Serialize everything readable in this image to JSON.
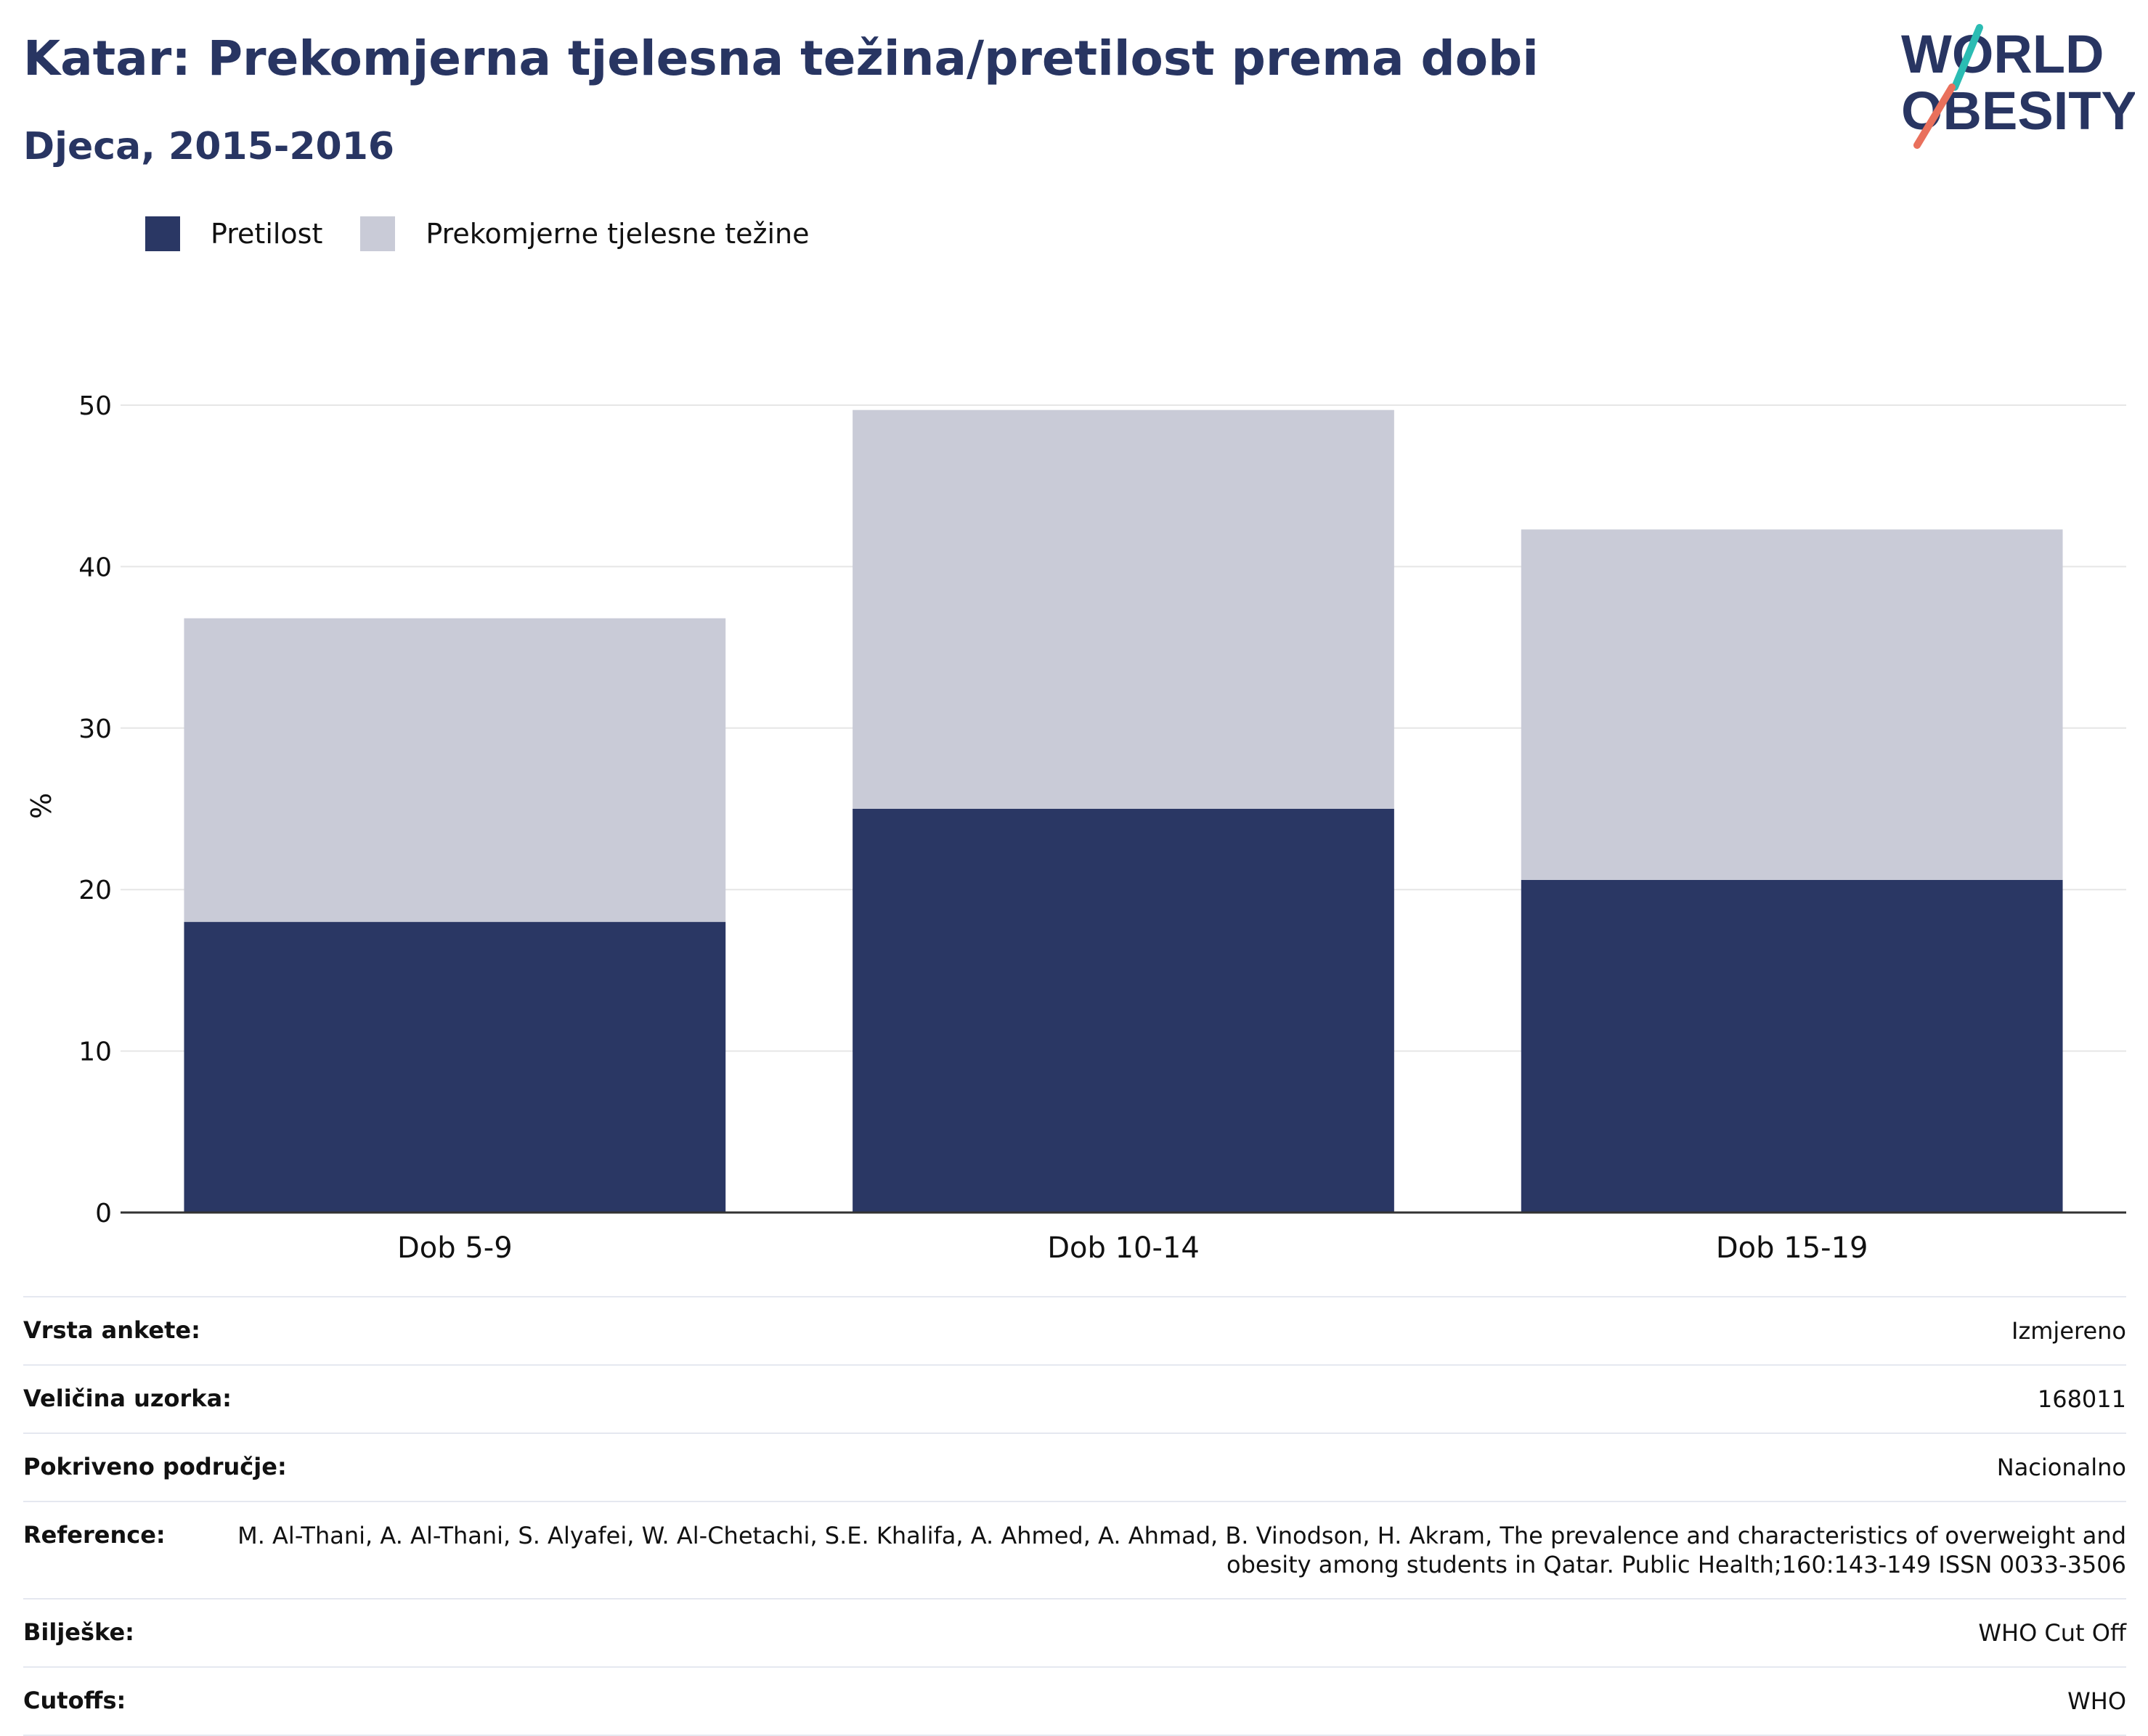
{
  "header": {
    "title": "Katar: Prekomjerna tjelesna težina/pretilost prema dobi",
    "subtitle": "Djeca, 2015-2016"
  },
  "logo": {
    "line1": "WORLD",
    "line2": "OBESITY",
    "accent_teal": "#2bbcb3",
    "accent_coral": "#e9705c"
  },
  "legend": [
    {
      "label": "Pretilost",
      "color": "#2a3764"
    },
    {
      "label": "Prekomjerne tjelesne težine",
      "color": "#c9cbd7"
    }
  ],
  "chart_data": {
    "type": "bar",
    "stacked": true,
    "categories": [
      "Dob 5-9",
      "Dob 10-14",
      "Dob 15-19"
    ],
    "series": [
      {
        "name": "Pretilost",
        "values": [
          18.0,
          25.0,
          20.6
        ],
        "color": "#2a3764"
      },
      {
        "name": "Prekomjerne tjelesne težine",
        "values": [
          18.8,
          24.7,
          21.7
        ],
        "color": "#c9cbd7"
      }
    ],
    "ylabel": "%",
    "ylim": [
      0,
      50
    ],
    "yticks": [
      0,
      10,
      20,
      30,
      40,
      50
    ],
    "grid": true
  },
  "meta": [
    {
      "key": "Vrsta ankete:",
      "value": "Izmjereno"
    },
    {
      "key": "Veličina uzorka:",
      "value": "168011"
    },
    {
      "key": "Pokriveno područje:",
      "value": "Nacionalno"
    },
    {
      "key": "Reference:",
      "value": "M. Al-Thani, A. Al-Thani, S. Alyafei, W. Al-Chetachi, S.E. Khalifa, A. Ahmed, A. Ahmad, B. Vinodson, H. Akram, The prevalence and characteristics of overweight and obesity among students in Qatar. Public Health;160:143-149 ISSN 0033-3506"
    },
    {
      "key": "Bilješke:",
      "value": "WHO Cut Off"
    },
    {
      "key": "Cutoffs:",
      "value": "WHO"
    }
  ]
}
